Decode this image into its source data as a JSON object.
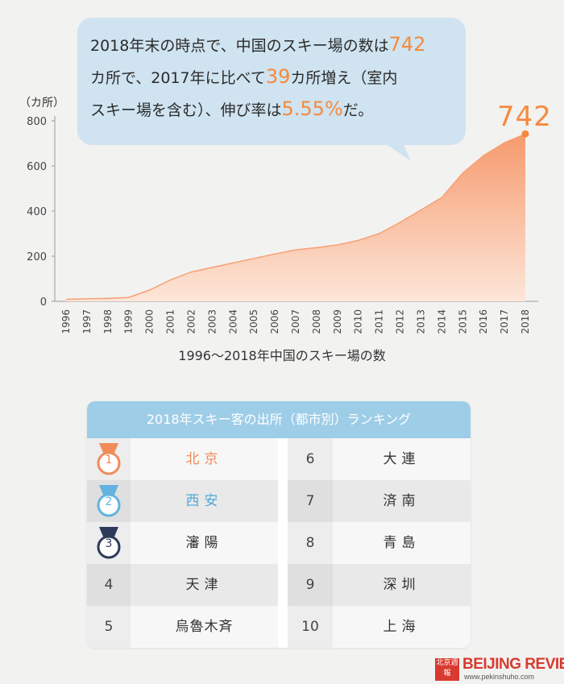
{
  "bubble": {
    "line1_pre": "2018年末の時点で、中国のスキー場の数は",
    "line1_hl": "742",
    "line2_pre": "カ所で、2017年に比べて",
    "line2_hl": "39",
    "line2_post": "カ所増え（室内",
    "line3_pre": "スキー場を含む）、伸び率は",
    "line3_hl": "5.55%",
    "line3_post": "だ。"
  },
  "chart_data": {
    "type": "area",
    "title": "1996～2018年中国のスキー場の数",
    "unit": "（カ所）",
    "x": [
      "1996",
      "1997",
      "1998",
      "1999",
      "2000",
      "2001",
      "2002",
      "2003",
      "2004",
      "2005",
      "2006",
      "2007",
      "2008",
      "2009",
      "2010",
      "2011",
      "2012",
      "2013",
      "2014",
      "2015",
      "2016",
      "2017",
      "2018"
    ],
    "values": [
      9,
      11,
      13,
      17,
      50,
      95,
      130,
      150,
      170,
      190,
      210,
      228,
      238,
      250,
      270,
      300,
      350,
      405,
      460,
      568,
      646,
      703,
      742
    ],
    "ylim": [
      0,
      800
    ],
    "yticks": [
      0,
      200,
      400,
      600,
      800
    ],
    "grid": false,
    "callout": "742",
    "colors": {
      "fill_top": "#f7a074",
      "fill_bottom": "#fde3d5",
      "line": "#f7a074",
      "marker": "#f58a3c"
    }
  },
  "ranking": {
    "title": "2018年スキー客の出所（都市別）ランキング",
    "left": [
      {
        "rank": "1",
        "city": "北京",
        "medal": "gold",
        "color": "#f08c5a"
      },
      {
        "rank": "2",
        "city": "西安",
        "medal": "silver",
        "color": "#4fa8d8"
      },
      {
        "rank": "3",
        "city": "瀋陽",
        "medal": "bronze",
        "color": "#333333"
      },
      {
        "rank": "4",
        "city": "天津"
      },
      {
        "rank": "5",
        "city": "烏魯木斉"
      }
    ],
    "right": [
      {
        "rank": "6",
        "city": "大連"
      },
      {
        "rank": "7",
        "city": "済南"
      },
      {
        "rank": "8",
        "city": "青島"
      },
      {
        "rank": "9",
        "city": "深圳"
      },
      {
        "rank": "10",
        "city": "上海"
      }
    ],
    "medal_colors": {
      "gold": "#f08c5a",
      "silver": "#62b3e0",
      "bronze": "#2e3a5a"
    }
  },
  "logo": {
    "seal_text": "北京週報",
    "brand": "BEIJING REVIEW",
    "url": "www.pekinshuho.com"
  }
}
